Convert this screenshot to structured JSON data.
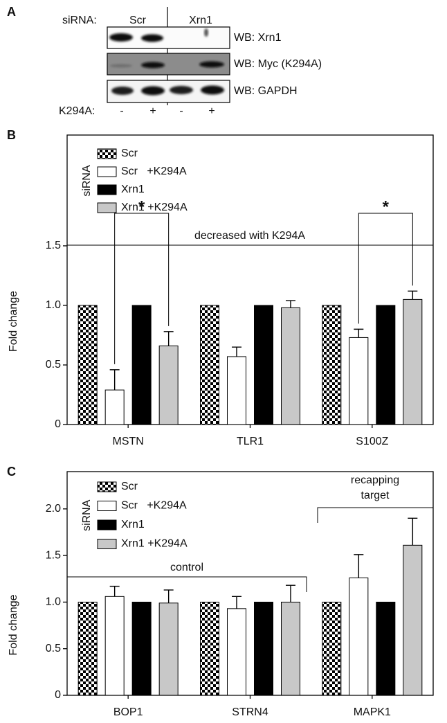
{
  "panel_labels": [
    "A",
    "B",
    "C"
  ],
  "blot": {
    "sirna_label": "siRNA:",
    "groups": [
      "Scr",
      "Xrn1"
    ],
    "rows": [
      "WB: Xrn1",
      "WB: Myc (K294A)",
      "WB: GAPDH"
    ],
    "treatment_label": "K294A:",
    "lanes": [
      "-",
      "+",
      "-",
      "+"
    ]
  },
  "chart_data": [
    {
      "type": "bar",
      "y_label": "Fold change",
      "legend_title": "siRNA",
      "categories": [
        "MSTN",
        "TLR1",
        "S100Z"
      ],
      "series": [
        {
          "name": "Scr",
          "color": "checker",
          "values": [
            1,
            1,
            1
          ]
        },
        {
          "name": "Scr   +K294A",
          "color": "#ffffff",
          "values": [
            0.29,
            0.57,
            0.73
          ],
          "errors": [
            0.17,
            0.08,
            0.07
          ]
        },
        {
          "name": "Xrn1",
          "color": "#000000",
          "values": [
            1,
            1,
            1
          ]
        },
        {
          "name": "Xrn1 +K294A",
          "color": "#c8c8c8",
          "values": [
            0.66,
            0.98,
            1.05
          ],
          "errors": [
            0.12,
            0.06,
            0.07
          ]
        }
      ],
      "ylim": [
        0,
        2.43
      ],
      "yticks": [
        0,
        0.5,
        {
          "value": 1,
          "label": "1.0"
        },
        1.5
      ],
      "annotations": [
        "decreased with K294A",
        "*",
        "*"
      ]
    },
    {
      "type": "bar",
      "y_label": "Fold change",
      "legend_title": "siRNA",
      "categories": [
        "BOP1",
        "STRN4",
        "MAPK1"
      ],
      "series": [
        {
          "name": "Scr",
          "color": "checker",
          "values": [
            1,
            1,
            1
          ]
        },
        {
          "name": "Scr   +K294A",
          "color": "#ffffff",
          "values": [
            1.06,
            0.93,
            1.26
          ],
          "errors": [
            0.11,
            0.13,
            0.25
          ]
        },
        {
          "name": "Xrn1",
          "color": "#000000",
          "values": [
            1,
            1,
            1
          ]
        },
        {
          "name": "Xrn1 +K294A",
          "color": "#c8c8c8",
          "values": [
            0.99,
            1.0,
            1.61
          ],
          "errors": [
            0.14,
            0.18,
            0.29
          ]
        }
      ],
      "ylim": [
        0,
        2.4
      ],
      "yticks": [
        0,
        0.5,
        {
          "value": 1,
          "label": "1.0"
        },
        1.5,
        {
          "value": 2,
          "label": "2.0"
        }
      ],
      "annotations": [
        "control",
        "recapping",
        "target"
      ]
    }
  ]
}
